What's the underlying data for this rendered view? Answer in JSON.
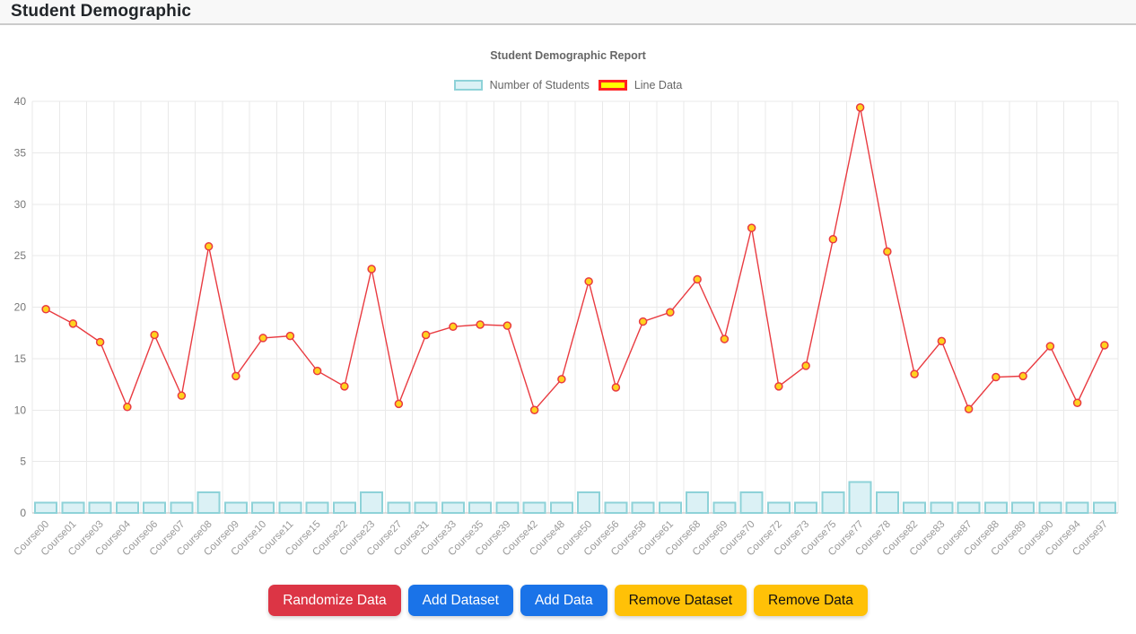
{
  "header": {
    "title": "Student Demographic"
  },
  "chart_data": {
    "type": "combo",
    "title": "Student Demographic Report",
    "legend_position": "top",
    "grid": true,
    "x_label_rotation": -45,
    "ylim": [
      0,
      40
    ],
    "yticks": [
      0,
      5,
      10,
      15,
      20,
      25,
      30,
      35,
      40
    ],
    "categories": [
      "Course00",
      "Course01",
      "Course03",
      "Course04",
      "Course06",
      "Course07",
      "Course08",
      "Course09",
      "Course10",
      "Course11",
      "Course15",
      "Course22",
      "Course23",
      "Course27",
      "Course31",
      "Course33",
      "Course35",
      "Course39",
      "Course42",
      "Course48",
      "Course50",
      "Course56",
      "Course58",
      "Course61",
      "Course68",
      "Course69",
      "Course70",
      "Course72",
      "Course73",
      "Course75",
      "Course77",
      "Course78",
      "Course82",
      "Course83",
      "Course87",
      "Course88",
      "Course89",
      "Course90",
      "Course94",
      "Course97"
    ],
    "series": [
      {
        "name": "Number of Students",
        "type": "bar",
        "values": [
          1,
          1,
          1,
          1,
          1,
          1,
          2,
          1,
          1,
          1,
          1,
          1,
          2,
          1,
          1,
          1,
          1,
          1,
          1,
          1,
          2,
          1,
          1,
          1,
          2,
          1,
          2,
          1,
          1,
          2,
          3,
          2,
          1,
          1,
          1,
          1,
          1,
          1,
          1,
          1
        ],
        "fill": "#dbf1f5",
        "border": "#8ed2d8"
      },
      {
        "name": "Line Data",
        "type": "line",
        "values": [
          19.8,
          18.4,
          16.6,
          10.3,
          17.3,
          11.4,
          25.9,
          13.3,
          17.0,
          17.2,
          13.8,
          12.3,
          23.7,
          10.6,
          17.3,
          18.1,
          18.3,
          18.2,
          10.0,
          13.0,
          22.5,
          12.2,
          18.6,
          19.5,
          22.7,
          16.9,
          27.7,
          12.3,
          14.3,
          26.6,
          39.4,
          25.4,
          13.5,
          16.7,
          10.1,
          13.2,
          13.3,
          16.2,
          10.7,
          16.3
        ],
        "line_color": "#e93b41",
        "point_fill": "#ffd21e",
        "point_border": "#e93b41",
        "legend_fill": "#ffff00",
        "legend_border": "#ff2222"
      }
    ],
    "axis_colors": {
      "grid": "#e9e9e9",
      "baseline": "#bdbdbd",
      "y_tick_text": "#777777",
      "x_tick_text": "#999999"
    }
  },
  "toolbar": {
    "buttons": [
      {
        "label": "Randomize Data",
        "color": "#dc3545",
        "text_color": "#ffffff"
      },
      {
        "label": "Add Dataset",
        "color": "#1a73e8",
        "text_color": "#ffffff"
      },
      {
        "label": "Add Data",
        "color": "#1a73e8",
        "text_color": "#ffffff"
      },
      {
        "label": "Remove Dataset",
        "color": "#ffc107",
        "text_color": "#111111"
      },
      {
        "label": "Remove Data",
        "color": "#ffc107",
        "text_color": "#111111"
      }
    ]
  }
}
